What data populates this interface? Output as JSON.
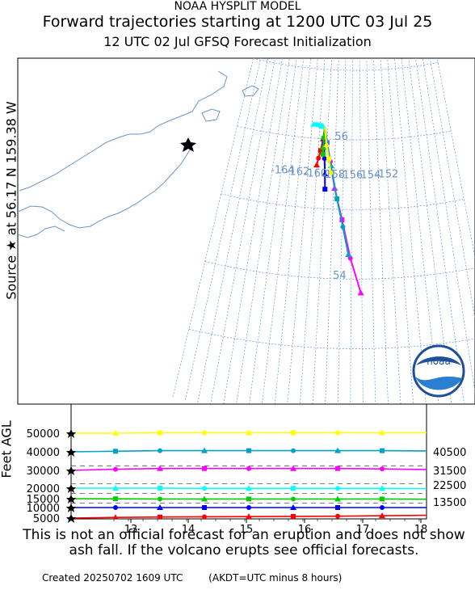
{
  "header": {
    "line1": "NOAA HYSPLIT MODEL",
    "line2": "Forward trajectories starting at 1200 UTC 03 Jul 25",
    "line3": "12 UTC 02 Jul    GFSQ  Forecast Initialization"
  },
  "source_label": "Source ★  at   56.17 N  159.38 W",
  "altitude_axis_label": "Feet AGL",
  "logo_text": "noaa",
  "disclaimer": "This is not an official forecast for an eruption and does not show ash fall. If the volcano erupts see official forecasts.",
  "footer": {
    "created": "Created 20250702 1609 UTC",
    "note": "(AKDT=UTC minus 8 hours)"
  },
  "chart_data": [
    {
      "type": "line",
      "panel": "map",
      "source": {
        "lat": 56.17,
        "lon": -159.38
      },
      "grid_labels": [
        "56",
        "54",
        "-164",
        "-162",
        "-160",
        "-158",
        "-156",
        "-154",
        "-152"
      ],
      "series": [
        {
          "color": "#ff0000",
          "level_ft": 5000,
          "points": [
            [
              -159.38,
              56.17
            ],
            [
              -159.5,
              56.0
            ],
            [
              -159.7,
              55.83
            ],
            [
              -159.9,
              55.72
            ],
            [
              -160.05,
              55.62
            ]
          ]
        },
        {
          "color": "#0000ff",
          "level_ft": 10000,
          "points": [
            [
              -159.38,
              56.17
            ],
            [
              -159.33,
              55.95
            ],
            [
              -159.2,
              55.72
            ],
            [
              -159.05,
              55.5
            ],
            [
              -158.95,
              55.28
            ]
          ]
        },
        {
          "color": "#00cc00",
          "level_ft": 13500,
          "points": [
            [
              -159.38,
              56.17
            ],
            [
              -159.44,
              56.02
            ],
            [
              -159.42,
              55.88
            ],
            [
              -159.4,
              55.78
            ]
          ]
        },
        {
          "color": "#00ffff",
          "level_ft": 22500,
          "points": [
            [
              -159.38,
              56.17
            ],
            [
              -159.6,
              56.18
            ],
            [
              -159.95,
              56.19
            ],
            [
              -160.4,
              56.2
            ],
            [
              -160.8,
              56.2
            ]
          ]
        },
        {
          "color": "#ff00ff",
          "level_ft": 31500,
          "points": [
            [
              -159.38,
              56.17
            ],
            [
              -159.0,
              55.95
            ],
            [
              -158.5,
              55.68
            ],
            [
              -157.9,
              55.3
            ],
            [
              -157.0,
              54.85
            ],
            [
              -156.1,
              54.3
            ],
            [
              -155.1,
              53.8
            ]
          ]
        },
        {
          "color": "#00a0c8",
          "level_ft": 40500,
          "points": [
            [
              -159.38,
              56.17
            ],
            [
              -159.0,
              55.95
            ],
            [
              -158.4,
              55.62
            ],
            [
              -157.6,
              55.15
            ],
            [
              -156.9,
              54.75
            ],
            [
              -156.3,
              54.35
            ]
          ]
        },
        {
          "color": "#ffff00",
          "level_ft": 50000,
          "points": [
            [
              -159.38,
              56.17
            ],
            [
              -159.05,
              55.92
            ],
            [
              -158.7,
              55.72
            ],
            [
              -158.4,
              55.52
            ]
          ]
        }
      ]
    },
    {
      "type": "line",
      "panel": "altitude",
      "x_ticks": [
        "13",
        "14",
        "15",
        "16",
        "17",
        "18"
      ],
      "y_ticks": [
        "50000",
        "40000",
        "30000",
        "20000",
        "15000",
        "10000",
        "5000"
      ],
      "right_labels": [
        "40500",
        "31500",
        "22500",
        "13500"
      ],
      "dashed_levels": [
        32500,
        22500,
        17500,
        12500
      ],
      "series": [
        {
          "color": "#ffff00",
          "values": [
            50000,
            50000,
            50200,
            50200,
            50200,
            50200,
            50200,
            50200,
            50200
          ]
        },
        {
          "color": "#00a0c8",
          "values": [
            40000,
            40300,
            40600,
            40600,
            40600,
            40600,
            40600,
            40600,
            40500
          ]
        },
        {
          "color": "#ff00ff",
          "values": [
            30000,
            30600,
            31000,
            31000,
            31000,
            31000,
            31000,
            30800,
            30500
          ]
        },
        {
          "color": "#00ffff",
          "values": [
            20000,
            20000,
            20000,
            19900,
            19900,
            19900,
            19900,
            19900,
            19800
          ]
        },
        {
          "color": "#00cc00",
          "values": [
            15000,
            14900,
            14800,
            14800,
            14800,
            14800,
            14800,
            14800,
            14700
          ]
        },
        {
          "color": "#0000ff",
          "values": [
            10000,
            10000,
            10000,
            10000,
            10000,
            10000,
            10000,
            10000,
            10000
          ]
        },
        {
          "color": "#ff0000",
          "values": [
            5000,
            5300,
            5500,
            5600,
            5700,
            5800,
            5900,
            6100,
            6300
          ]
        }
      ]
    }
  ]
}
